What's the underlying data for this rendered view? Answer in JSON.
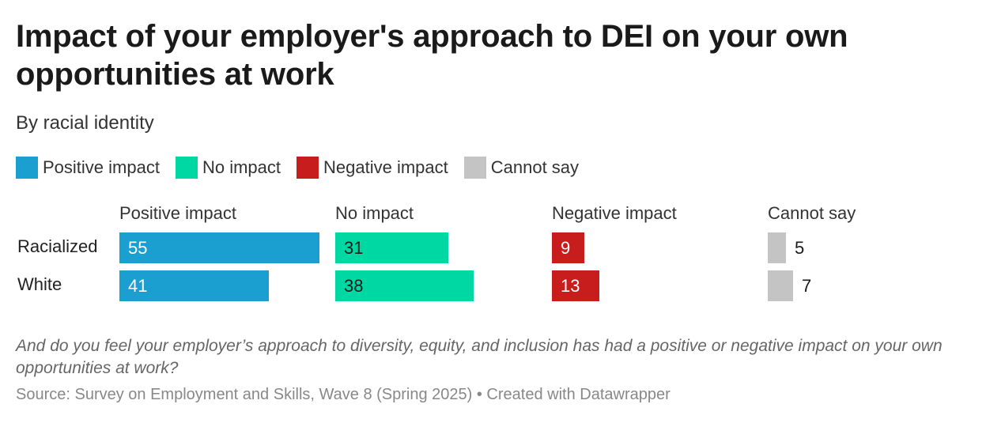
{
  "header": {
    "title": "Impact of your employer's approach to DEI on your own opportunities at work",
    "subtitle": "By racial identity"
  },
  "chart_data": {
    "type": "bar",
    "layout": "split-bars",
    "title": "Impact of your employer's approach to DEI on your own opportunities at work",
    "subtitle": "By racial identity",
    "categories": [
      "Racialized",
      "White"
    ],
    "series": [
      {
        "name": "Positive impact",
        "color": "#1a9fd0",
        "label_color": "#ffffff",
        "values": [
          55,
          41
        ]
      },
      {
        "name": "No impact",
        "color": "#00d8a4",
        "label_color": "#1a1a1a",
        "values": [
          31,
          38
        ]
      },
      {
        "name": "Negative impact",
        "color": "#c71e1d",
        "label_color": "#ffffff",
        "values": [
          9,
          13
        ]
      },
      {
        "name": "Cannot say",
        "color": "#c4c4c4",
        "label_color": "#1a1a1a",
        "values": [
          5,
          7
        ]
      }
    ],
    "xlim": [
      0,
      55
    ],
    "legend": "top-left",
    "grid": false
  },
  "footer": {
    "note": "And do you feel your employer’s approach to diversity, equity, and inclusion has had a positive or negative impact on your own opportunities at work?",
    "source": "Source: Survey on Employment and Skills, Wave 8 (Spring 2025) • Created with Datawrapper"
  }
}
